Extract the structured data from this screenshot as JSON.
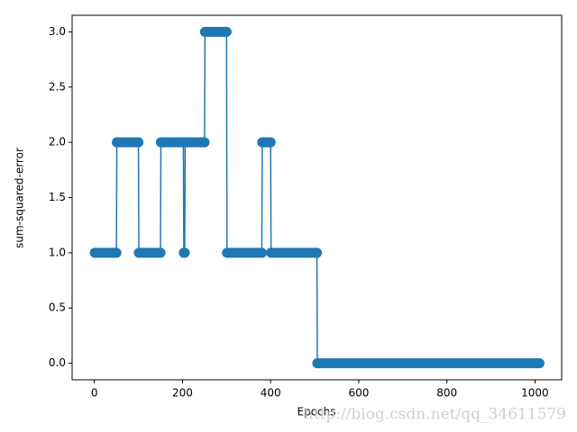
{
  "chart_data": {
    "type": "line",
    "xlabel": "Epochs",
    "ylabel": "sum-squared-error",
    "watermark": "http://blog.csdn.net/qq_34611579",
    "x": [
      1,
      50,
      51,
      100,
      101,
      150,
      151,
      202,
      203,
      205,
      206,
      250,
      251,
      300,
      301,
      380,
      381,
      400,
      401,
      505,
      506,
      1010
    ],
    "series": [
      {
        "color": "#1f77b4",
        "values": [
          1,
          1,
          2,
          2,
          1,
          1,
          2,
          2,
          1,
          1,
          2,
          2,
          3,
          3,
          1,
          1,
          2,
          2,
          1,
          1,
          0,
          0
        ]
      }
    ],
    "xlim": [
      -50.5,
      1060.5
    ],
    "xticks": [
      0,
      200,
      400,
      600,
      800,
      1000
    ],
    "ylim": [
      -0.15,
      3.15
    ],
    "yticks": [
      {
        "value": 0,
        "label": "0.0"
      },
      0.5,
      {
        "value": 1,
        "label": "1.0"
      },
      1.5,
      {
        "value": 2,
        "label": "2.0"
      },
      2.5,
      {
        "value": 3,
        "label": "3.0"
      }
    ],
    "grid": false
  }
}
